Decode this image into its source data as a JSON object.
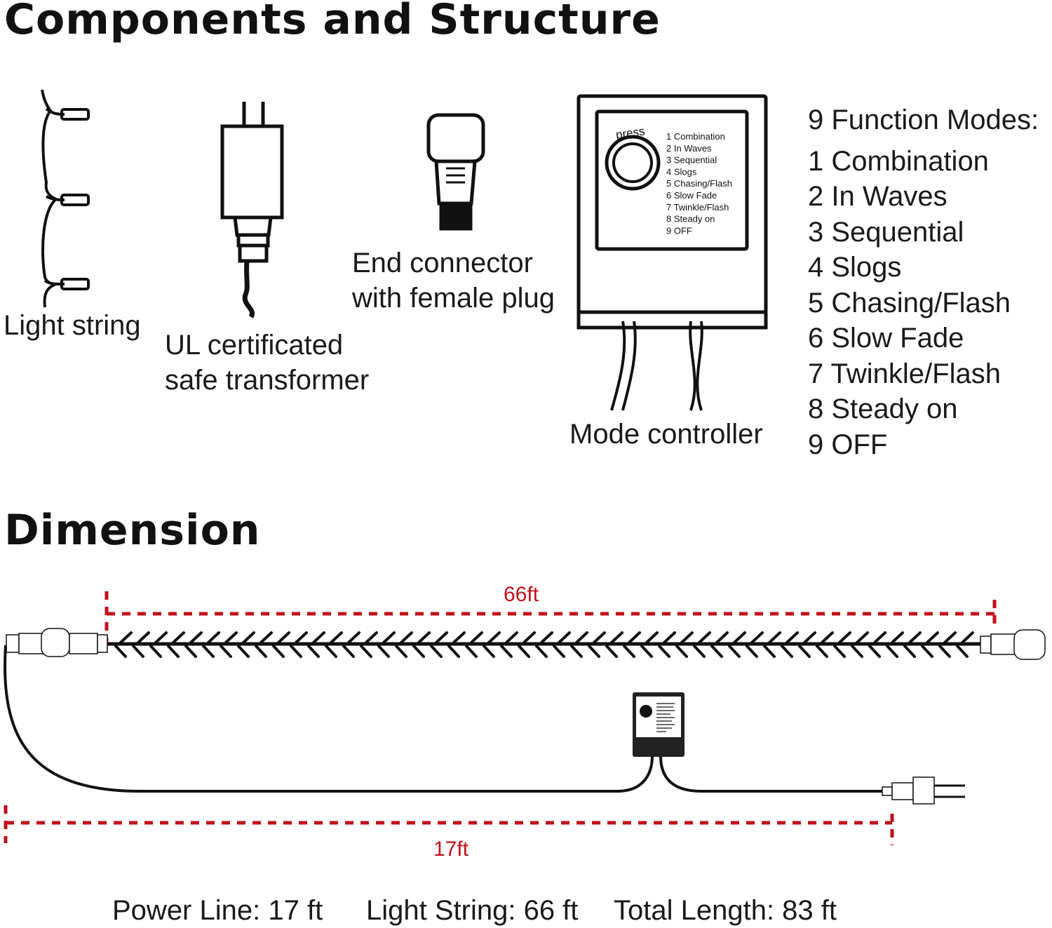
{
  "section_titles": {
    "components": "Components and Structure",
    "dimension": "Dimension"
  },
  "components": {
    "light_string": "Light string",
    "transformer": [
      "UL certificated",
      "safe transformer"
    ],
    "end_connector": [
      "End connector",
      "with female plug"
    ],
    "mode_controller": "Mode controller"
  },
  "controller_panel": {
    "press": "press",
    "modes": [
      "1 Combination",
      "2 In Waves",
      "3 Sequential",
      "4 Slogs",
      "5 Chasing/Flash",
      "6 Slow Fade",
      "7 Twinkle/Flash",
      "8 Steady on",
      "9 OFF"
    ]
  },
  "function_modes": {
    "title": "9 Function Modes:",
    "items": [
      "1 Combination",
      "2 In Waves",
      "3 Sequential",
      "4 Slogs",
      "5 Chasing/Flash",
      "6 Slow Fade",
      "7 Twinkle/Flash",
      "8 Steady on",
      "9 OFF"
    ]
  },
  "dimension": {
    "light_string_length": "66ft",
    "power_line_length": "17ft",
    "summary": {
      "power_line": "Power Line: 17 ft",
      "light_string": "Light String: 66 ft",
      "total": "Total Length: 83 ft"
    }
  },
  "colors": {
    "measure": "#c0101a",
    "ink": "#111111"
  }
}
